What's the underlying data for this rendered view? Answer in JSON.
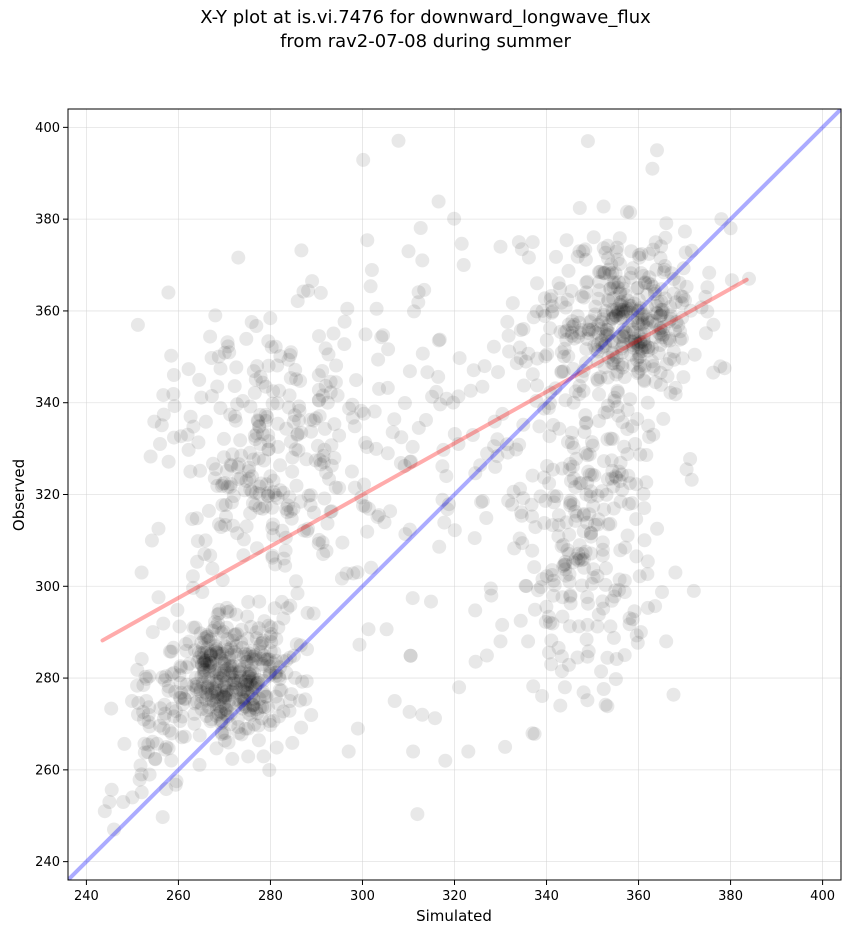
{
  "chart_data": {
    "type": "scatter",
    "title_line1": "X-Y plot at is.vi.7476 for downward_longwave_flux",
    "title_line2": "from rav2-07-08 during summer",
    "xlabel": "Simulated",
    "ylabel": "Observed",
    "xlim": [
      236,
      404
    ],
    "ylim": [
      236,
      404
    ],
    "xticks": [
      240,
      260,
      280,
      300,
      320,
      340,
      360,
      380,
      400
    ],
    "yticks": [
      240,
      260,
      280,
      300,
      320,
      340,
      360,
      380,
      400
    ],
    "grid": true,
    "point_color": "#000000",
    "one_to_one_line": {
      "color": "#0000ff",
      "from": [
        236,
        236
      ],
      "to": [
        404,
        404
      ]
    },
    "fit_line": {
      "color": "#ff0000",
      "from": [
        243.5,
        288.2
      ],
      "to": [
        383.5,
        366.8
      ]
    },
    "clusters": [
      {
        "cx": 271,
        "cy": 280,
        "sx": 7,
        "sy": 7,
        "n": 420
      },
      {
        "cx": 280,
        "cy": 330,
        "sx": 11,
        "sy": 16,
        "n": 300
      },
      {
        "cx": 357,
        "cy": 358,
        "sx": 8,
        "sy": 9,
        "n": 360
      },
      {
        "cx": 348,
        "cy": 322,
        "sx": 9,
        "sy": 18,
        "n": 200
      },
      {
        "cx": 318,
        "cy": 330,
        "sx": 18,
        "sy": 24,
        "n": 140
      },
      {
        "cx": 255,
        "cy": 268,
        "sx": 4,
        "sy": 7,
        "n": 40
      },
      {
        "cx": 350,
        "cy": 298,
        "sx": 9,
        "sy": 12,
        "n": 80
      }
    ],
    "points": [
      [
        246,
        247
      ],
      [
        244,
        251
      ],
      [
        248,
        253
      ],
      [
        245,
        253
      ],
      [
        252,
        259
      ],
      [
        250,
        254
      ],
      [
        253,
        275
      ],
      [
        252,
        303
      ],
      [
        256,
        331
      ],
      [
        262,
        333
      ],
      [
        349,
        397
      ],
      [
        364,
        395
      ],
      [
        363,
        391
      ],
      [
        384,
        367
      ],
      [
        380,
        378
      ],
      [
        378,
        380
      ],
      [
        372,
        299
      ],
      [
        368,
        303
      ],
      [
        337,
        375
      ],
      [
        334,
        375
      ],
      [
        330,
        374
      ],
      [
        310,
        373
      ],
      [
        313,
        371
      ],
      [
        322,
        370
      ],
      [
        318,
        262
      ],
      [
        323,
        264
      ],
      [
        331,
        265
      ],
      [
        311,
        264
      ],
      [
        307,
        275
      ],
      [
        297,
        264
      ],
      [
        343,
        274
      ],
      [
        344,
        278
      ],
      [
        341,
        283
      ],
      [
        345,
        301
      ],
      [
        299,
        269
      ],
      [
        313,
        272
      ],
      [
        330,
        288
      ],
      [
        336,
        288
      ],
      [
        321,
        278
      ],
      [
        366,
        288
      ],
      [
        357,
        285
      ],
      [
        362,
        340
      ]
    ]
  }
}
